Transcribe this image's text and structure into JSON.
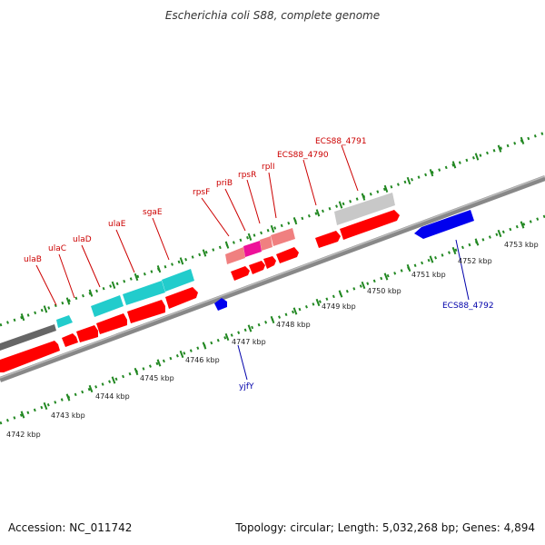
{
  "title": "Escherichia coli S88, complete genome",
  "footer": {
    "accession": "Accession: NC_011742",
    "summary": "Topology: circular; Length: 5,032,268 bp; Genes: 4,894"
  },
  "colors": {
    "forward_gene": "#ff0000",
    "forward_gene_light": "#f08080",
    "magenta_gene": "#ee1199",
    "cyan_gene": "#22cccc",
    "gray_gene": "#c8c8c8",
    "dark_gray_gene": "#666666",
    "reverse_gene": "#0000ee",
    "backbone": "#888888",
    "tick": "#228822",
    "top_label": "#cc0000",
    "bottom_label": "#0000aa"
  },
  "scale": {
    "unit": "kbp",
    "ticks": [
      {
        "label": "4742 kbp"
      },
      {
        "label": "4743 kbp"
      },
      {
        "label": "4744 kbp"
      },
      {
        "label": "4745 kbp"
      },
      {
        "label": "4746 kbp"
      },
      {
        "label": "4747 kbp"
      },
      {
        "label": "4748 kbp"
      },
      {
        "label": "4749 kbp"
      },
      {
        "label": "4750 kbp"
      },
      {
        "label": "4751 kbp"
      },
      {
        "label": "4752 kbp"
      },
      {
        "label": "4753 kbp"
      }
    ]
  },
  "gene_labels_top": [
    {
      "name": "ulaB"
    },
    {
      "name": "ulaC"
    },
    {
      "name": "ulaD"
    },
    {
      "name": "ulaE"
    },
    {
      "name": "sgaE"
    },
    {
      "name": "rpsF"
    },
    {
      "name": "priB"
    },
    {
      "name": "rpsR"
    },
    {
      "name": "rplI"
    },
    {
      "name": "ECS88_4790"
    },
    {
      "name": "ECS88_4791"
    }
  ],
  "gene_labels_bottom": [
    {
      "name": "yjfY"
    },
    {
      "name": "ECS88_4792"
    }
  ]
}
